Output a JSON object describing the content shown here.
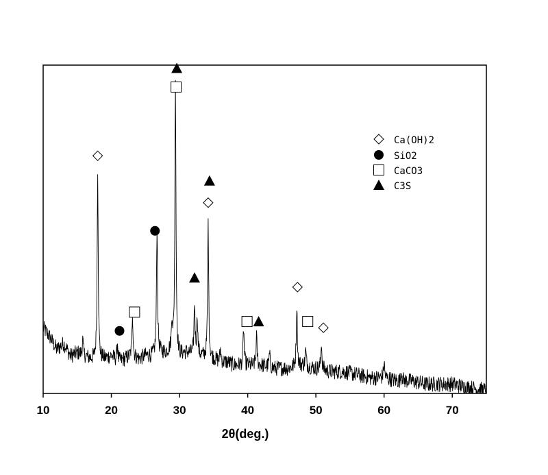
{
  "chart_data": {
    "type": "line",
    "title": "",
    "xlabel": "2θ(deg.)",
    "ylabel": "",
    "xlim": [
      10,
      75
    ],
    "ylim": [
      0,
      105
    ],
    "xticks": [
      10,
      20,
      30,
      40,
      50,
      60,
      70
    ],
    "xtick_labels": [
      "10",
      "20",
      "30",
      "40",
      "50",
      "60",
      "70"
    ],
    "grid": false,
    "legend_position": "upper-right",
    "baseline": [
      [
        10,
        21
      ],
      [
        11,
        18
      ],
      [
        12,
        14
      ],
      [
        13,
        16
      ],
      [
        14,
        12
      ],
      [
        15,
        13
      ],
      [
        16,
        12
      ],
      [
        17,
        11
      ],
      [
        19,
        11
      ],
      [
        20,
        12
      ],
      [
        21,
        10
      ],
      [
        22,
        11
      ],
      [
        23,
        12
      ],
      [
        24,
        11
      ],
      [
        25,
        12
      ],
      [
        26,
        12
      ],
      [
        27,
        13
      ],
      [
        28,
        13
      ],
      [
        29,
        14
      ],
      [
        30,
        12
      ],
      [
        31,
        13
      ],
      [
        33,
        12
      ],
      [
        35,
        11
      ],
      [
        36,
        10
      ],
      [
        37,
        10
      ],
      [
        38,
        9
      ],
      [
        40,
        9
      ],
      [
        42,
        9
      ],
      [
        44,
        8
      ],
      [
        46,
        8
      ],
      [
        48,
        9
      ],
      [
        50,
        8
      ],
      [
        52,
        7
      ],
      [
        54,
        7
      ],
      [
        56,
        6
      ],
      [
        58,
        5
      ],
      [
        60,
        5
      ],
      [
        62,
        4
      ],
      [
        64,
        4
      ],
      [
        66,
        3
      ],
      [
        68,
        3
      ],
      [
        70,
        3
      ],
      [
        72,
        2
      ],
      [
        75,
        1
      ]
    ],
    "peaks": [
      {
        "x": 15.8,
        "h": 5
      },
      {
        "x": 18.0,
        "h": 61
      },
      {
        "x": 20.9,
        "h": 6
      },
      {
        "x": 23.1,
        "h": 14
      },
      {
        "x": 26.7,
        "h": 41
      },
      {
        "x": 28.9,
        "h": 9
      },
      {
        "x": 29.4,
        "h": 89
      },
      {
        "x": 32.2,
        "h": 16
      },
      {
        "x": 32.6,
        "h": 12
      },
      {
        "x": 34.2,
        "h": 44
      },
      {
        "x": 36.0,
        "h": 4
      },
      {
        "x": 39.4,
        "h": 12
      },
      {
        "x": 41.3,
        "h": 9
      },
      {
        "x": 43.2,
        "h": 4
      },
      {
        "x": 47.2,
        "h": 20
      },
      {
        "x": 48.5,
        "h": 5
      },
      {
        "x": 50.8,
        "h": 9
      },
      {
        "x": 60.0,
        "h": 5
      },
      {
        "x": 62.6,
        "h": 3
      }
    ],
    "series": [
      {
        "name": "Ca(OH)2",
        "marker": "diamond"
      },
      {
        "name": "SiO2",
        "marker": "circle"
      },
      {
        "name": "CaCO3",
        "marker": "square"
      },
      {
        "name": "C3S",
        "marker": "triangle"
      }
    ],
    "peak_markers": [
      {
        "x": 18.0,
        "y": 76,
        "phase": "Ca(OH)2"
      },
      {
        "x": 21.2,
        "y": 20,
        "phase": "SiO2"
      },
      {
        "x": 23.4,
        "y": 26,
        "phase": "CaCO3"
      },
      {
        "x": 26.4,
        "y": 52,
        "phase": "SiO2"
      },
      {
        "x": 29.5,
        "y": 98,
        "phase": "CaCO3"
      },
      {
        "x": 29.6,
        "y": 104,
        "phase": "C3S"
      },
      {
        "x": 32.2,
        "y": 37,
        "phase": "C3S"
      },
      {
        "x": 34.2,
        "y": 61,
        "phase": "Ca(OH)2"
      },
      {
        "x": 34.4,
        "y": 68,
        "phase": "C3S"
      },
      {
        "x": 39.9,
        "y": 23,
        "phase": "CaCO3"
      },
      {
        "x": 41.6,
        "y": 23,
        "phase": "C3S"
      },
      {
        "x": 47.3,
        "y": 34,
        "phase": "Ca(OH)2"
      },
      {
        "x": 48.8,
        "y": 23,
        "phase": "CaCO3"
      },
      {
        "x": 51.1,
        "y": 21,
        "phase": "Ca(OH)2"
      }
    ]
  }
}
